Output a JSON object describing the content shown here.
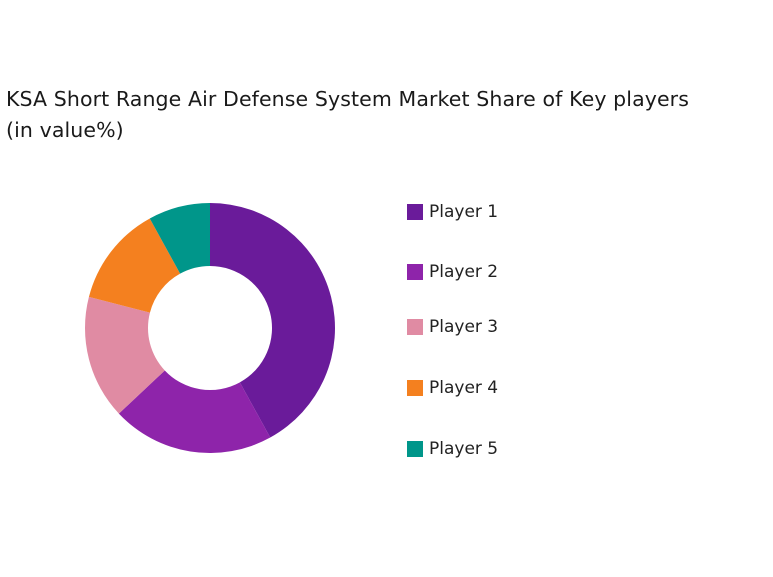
{
  "chart_data": {
    "type": "pie",
    "donut": true,
    "title": "KSA Short Range Air Defense System Market Share of Key players",
    "subtitle": "(in value%)",
    "categories": [
      "Player 1",
      "Player 2",
      "Player 3",
      "Player 4",
      "Player 5"
    ],
    "values": [
      42,
      21,
      16,
      13,
      8
    ],
    "colors": [
      "#6a1b9a",
      "#8e24aa",
      "#e08ba3",
      "#f4801f",
      "#00968a"
    ],
    "legend_position": "right"
  }
}
